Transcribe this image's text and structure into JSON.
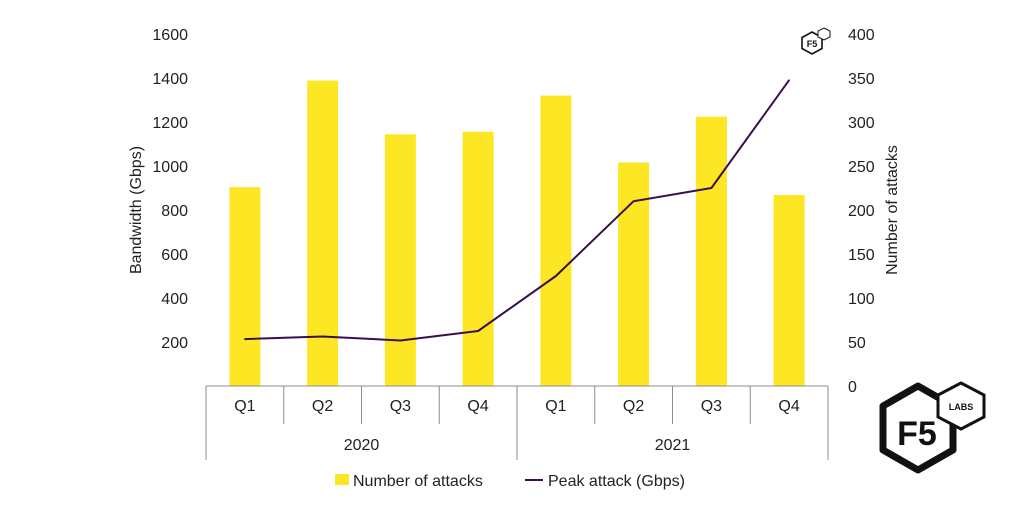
{
  "chart_data": {
    "type": "bar",
    "categories": [
      "Q1",
      "Q2",
      "Q3",
      "Q4",
      "Q1",
      "Q2",
      "Q3",
      "Q4"
    ],
    "groups": [
      {
        "label": "2020",
        "count": 4
      },
      {
        "label": "2021",
        "count": 4
      }
    ],
    "series": [
      {
        "name": "Number of attacks",
        "type": "bar",
        "axis": "right",
        "color": "#FDE725",
        "values": [
          226,
          347,
          286,
          289,
          330,
          254,
          306,
          217
        ]
      },
      {
        "name": "Peak attack (Gbps)",
        "type": "line",
        "axis": "left",
        "color": "#3B0F4F",
        "values": [
          213,
          225,
          207,
          250,
          500,
          840,
          900,
          1390
        ]
      }
    ],
    "ylabel_left": "Bandwidth (Gbps)",
    "ylabel_right": "Number of attacks",
    "ylim_left": [
      0,
      1600
    ],
    "ylim_right": [
      0,
      400
    ],
    "yticks_left": [
      "200",
      "400",
      "600",
      "800",
      "1000",
      "1200",
      "1400",
      "1600"
    ],
    "yticks_right": [
      "0",
      "50",
      "100",
      "150",
      "200",
      "250",
      "300",
      "350",
      "400"
    ],
    "legend_position": "bottom",
    "grid": false
  },
  "logos": {
    "small": "F5",
    "large": "F5",
    "badge": "LABS"
  }
}
